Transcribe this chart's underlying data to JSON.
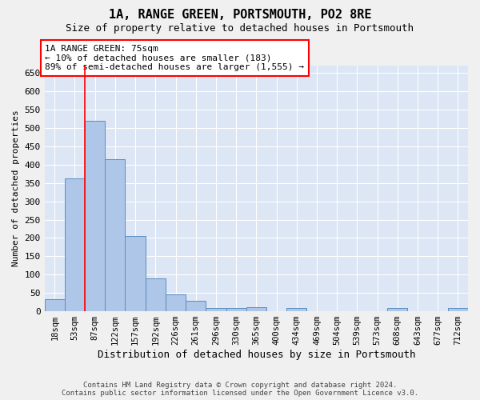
{
  "title": "1A, RANGE GREEN, PORTSMOUTH, PO2 8RE",
  "subtitle": "Size of property relative to detached houses in Portsmouth",
  "xlabel": "Distribution of detached houses by size in Portsmouth",
  "ylabel": "Number of detached properties",
  "bar_labels": [
    "18sqm",
    "53sqm",
    "87sqm",
    "122sqm",
    "157sqm",
    "192sqm",
    "226sqm",
    "261sqm",
    "296sqm",
    "330sqm",
    "365sqm",
    "400sqm",
    "434sqm",
    "469sqm",
    "504sqm",
    "539sqm",
    "573sqm",
    "608sqm",
    "643sqm",
    "677sqm",
    "712sqm"
  ],
  "bar_values": [
    33,
    362,
    520,
    415,
    205,
    90,
    46,
    28,
    10,
    9,
    12,
    0,
    9,
    0,
    0,
    0,
    0,
    8,
    0,
    0,
    8
  ],
  "bar_color": "#aec6e8",
  "bar_edge_color": "#5a8fc0",
  "plot_bg_color": "#dce6f5",
  "fig_bg_color": "#f0f0f0",
  "grid_color": "#ffffff",
  "ylim": [
    0,
    670
  ],
  "yticks": [
    0,
    50,
    100,
    150,
    200,
    250,
    300,
    350,
    400,
    450,
    500,
    550,
    600,
    650
  ],
  "red_line_x": 1.5,
  "annotation_line1": "1A RANGE GREEN: 75sqm",
  "annotation_line2": "← 10% of detached houses are smaller (183)",
  "annotation_line3": "89% of semi-detached houses are larger (1,555) →",
  "footer_line1": "Contains HM Land Registry data © Crown copyright and database right 2024.",
  "footer_line2": "Contains public sector information licensed under the Open Government Licence v3.0."
}
